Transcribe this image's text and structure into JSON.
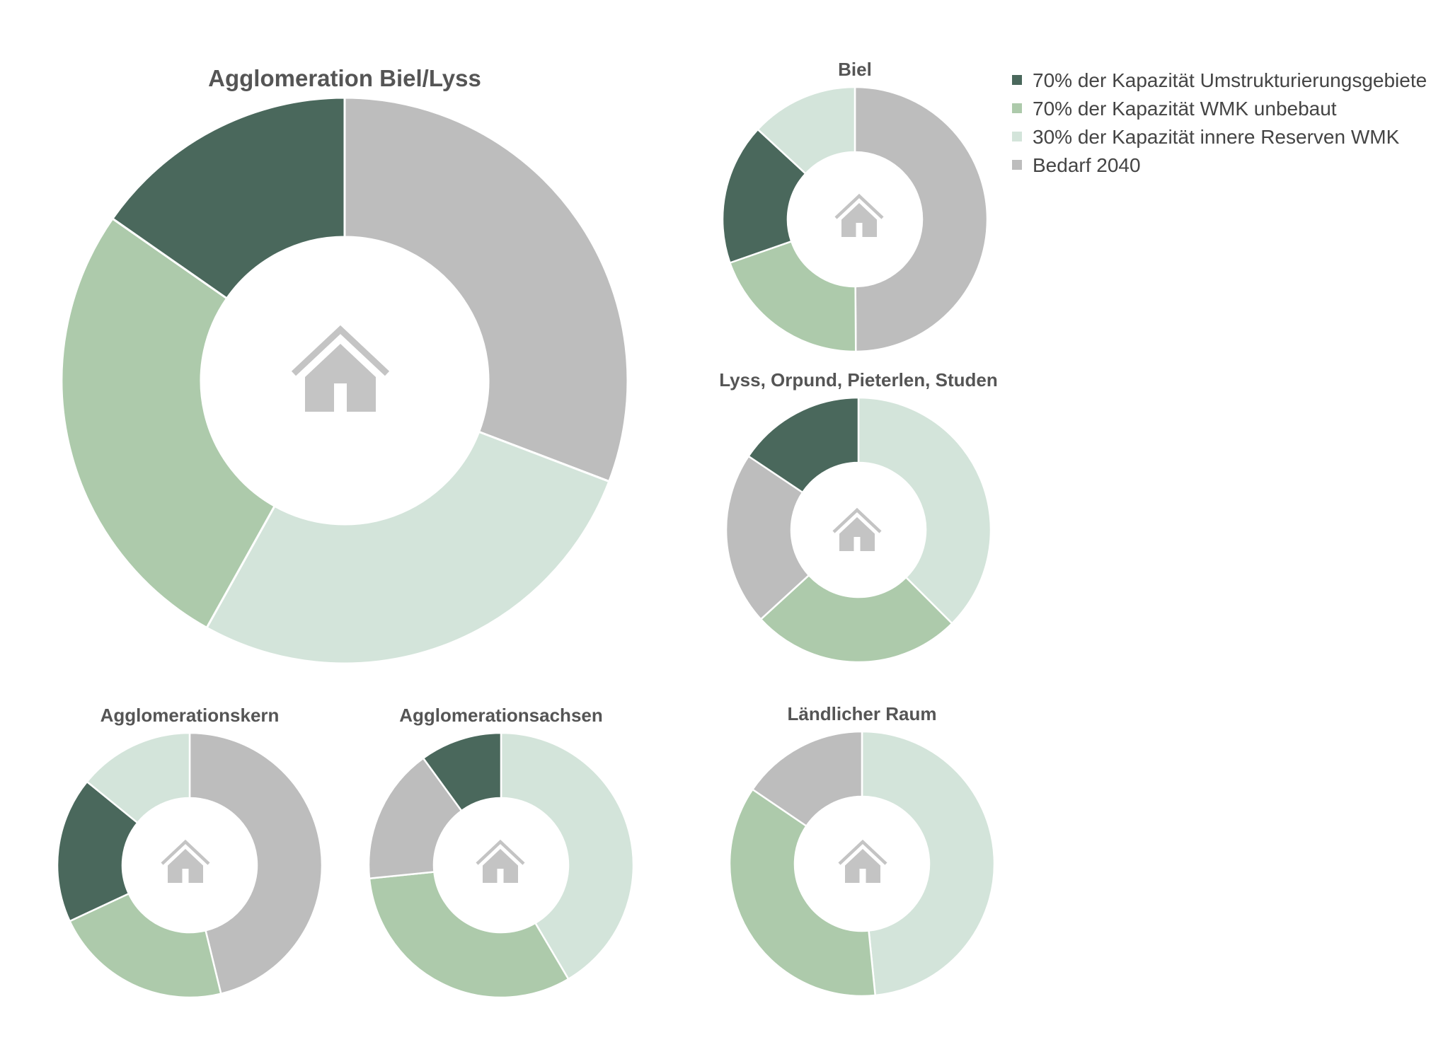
{
  "colors": {
    "umstrukturierung": "#4a685c",
    "wmk_unbebaut": "#adcaab",
    "innere_reserven": "#d3e4da",
    "bedarf": "#bdbdbd",
    "house": "#c4c4c4",
    "slice_border": "#ffffff"
  },
  "legend": {
    "position": "top-right",
    "items": [
      {
        "label": "70% der Kapazität Umstrukturierungsgebiete",
        "color": "#4a685c"
      },
      {
        "label": "70% der Kapazität WMK unbebaut",
        "color": "#adcaab"
      },
      {
        "label": "30% der Kapazität innere Reserven WMK",
        "color": "#d3e4da"
      },
      {
        "label": "Bedarf 2040",
        "color": "#bdbdbd"
      }
    ]
  },
  "chart_data": [
    {
      "type": "pie",
      "variant": "donut",
      "title": "Agglomeration Biel/Lyss",
      "center_icon": "house-icon",
      "slices": [
        {
          "label": "Bedarf 2040",
          "value": 30.8,
          "color": "#bdbdbd"
        },
        {
          "label": "30% der Kapazität innere Reserven WMK",
          "value": 27.3,
          "color": "#d3e4da"
        },
        {
          "label": "70% der Kapazität WMK unbebaut",
          "value": 26.6,
          "color": "#adcaab"
        },
        {
          "label": "70% der Kapazität Umstrukturierungsgebiete",
          "value": 15.3,
          "color": "#4a685c"
        }
      ]
    },
    {
      "type": "pie",
      "variant": "donut",
      "title": "Biel",
      "center_icon": "house-icon",
      "slices": [
        {
          "label": "Bedarf 2040",
          "value": 44.9,
          "color": "#bdbdbd"
        },
        {
          "label": "70% der Kapazität WMK unbebaut",
          "value": 17.8,
          "color": "#adcaab"
        },
        {
          "label": "70% der Kapazität Umstrukturierungsgebiete",
          "value": 15.5,
          "color": "#4a685c"
        },
        {
          "label": "30% der Kapazität innere Reserven WMK",
          "value": 11.8,
          "color": "#d3e4da"
        }
      ]
    },
    {
      "type": "pie",
      "variant": "donut",
      "title": "Lyss, Orpund, Pieterlen, Studen",
      "center_icon": "house-icon",
      "slices": [
        {
          "label": "30% der Kapazität innere Reserven WMK",
          "value": 37.5,
          "color": "#d3e4da"
        },
        {
          "label": "70% der Kapazität WMK unbebaut",
          "value": 25.7,
          "color": "#adcaab"
        },
        {
          "label": "Bedarf 2040",
          "value": 21.2,
          "color": "#bdbdbd"
        },
        {
          "label": "70% der Kapazität Umstrukturierungsgebiete",
          "value": 15.6,
          "color": "#4a685c"
        }
      ]
    },
    {
      "type": "pie",
      "variant": "donut",
      "title": "Agglomerationskern",
      "center_icon": "house-icon",
      "slices": [
        {
          "label": "Bedarf 2040",
          "value": 42.5,
          "color": "#bdbdbd"
        },
        {
          "label": "70% der Kapazität WMK unbebaut",
          "value": 20.1,
          "color": "#adcaab"
        },
        {
          "label": "70% der Kapazität Umstrukturierungsgebiete",
          "value": 16.4,
          "color": "#4a685c"
        },
        {
          "label": "30% der Kapazität innere Reserven WMK",
          "value": 13.0,
          "color": "#d3e4da"
        }
      ]
    },
    {
      "type": "pie",
      "variant": "donut",
      "title": "Agglomerationsachsen",
      "center_icon": "house-icon",
      "slices": [
        {
          "label": "30% der Kapazität innere Reserven WMK",
          "value": 41.5,
          "color": "#d3e4da"
        },
        {
          "label": "70% der Kapazität WMK unbebaut",
          "value": 31.9,
          "color": "#adcaab"
        },
        {
          "label": "Bedarf 2040",
          "value": 16.6,
          "color": "#bdbdbd"
        },
        {
          "label": "70% der Kapazität Umstrukturierungsgebiete",
          "value": 10.0,
          "color": "#4a685c"
        }
      ]
    },
    {
      "type": "pie",
      "variant": "donut",
      "title": "Ländlicher Raum",
      "center_icon": "house-icon",
      "slices": [
        {
          "label": "30% der Kapazität innere Reserven WMK",
          "value": 48.4,
          "color": "#d3e4da"
        },
        {
          "label": "70% der Kapazität WMK unbebaut",
          "value": 36.1,
          "color": "#adcaab"
        },
        {
          "label": "Bedarf 2040",
          "value": 15.5,
          "color": "#bdbdbd"
        }
      ]
    }
  ]
}
